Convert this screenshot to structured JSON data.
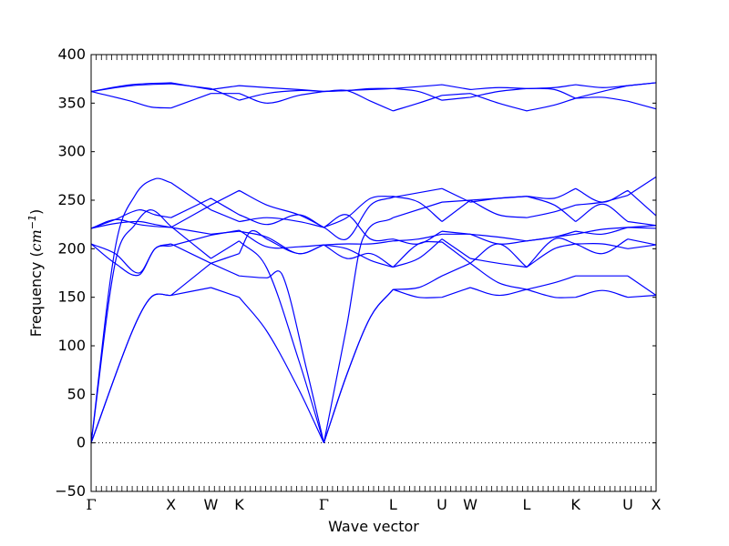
{
  "chart_data": {
    "type": "line",
    "title": "",
    "xlabel": "Wave vector",
    "ylabel": "Frequency (cm⁻¹)",
    "ylabel_prefix": "Frequency (",
    "ylabel_unit": "cm",
    "ylabel_exp": "−1",
    "ylabel_suffix": ")",
    "ylim": [
      -50,
      400
    ],
    "yticks": [
      -50,
      0,
      50,
      100,
      150,
      200,
      250,
      300,
      350,
      400
    ],
    "grid": false,
    "legend": "none",
    "line_color": "#0000ff",
    "zero_line": true,
    "high_symmetry_points": [
      {
        "label": "Γ",
        "pos": 0.0
      },
      {
        "label": "X",
        "pos": 1.0
      },
      {
        "label": "W",
        "pos": 1.5
      },
      {
        "label": "K",
        "pos": 1.854
      },
      {
        "label": "Γ",
        "pos": 2.914
      },
      {
        "label": "L",
        "pos": 3.78
      },
      {
        "label": "U",
        "pos": 4.393
      },
      {
        "label": "W",
        "pos": 4.747
      },
      {
        "label": "L",
        "pos": 5.454
      },
      {
        "label": "K",
        "pos": 6.066
      },
      {
        "label": "U",
        "pos": 6.72
      },
      {
        "label": "X",
        "pos": 7.074
      }
    ],
    "bands": [
      [
        [
          0,
          0
        ],
        [
          0.5,
          112
        ],
        [
          0.75,
          150
        ],
        [
          1.0,
          152
        ],
        [
          1.5,
          160
        ],
        [
          1.854,
          150
        ],
        [
          2.2,
          115
        ],
        [
          2.6,
          55
        ],
        [
          2.914,
          0
        ],
        [
          3.2,
          70
        ],
        [
          3.5,
          130
        ],
        [
          3.78,
          158
        ],
        [
          4.1,
          150
        ],
        [
          4.393,
          150
        ],
        [
          4.747,
          160
        ],
        [
          5.1,
          152
        ],
        [
          5.454,
          158
        ],
        [
          5.8,
          150
        ],
        [
          6.066,
          150
        ],
        [
          6.4,
          157
        ],
        [
          6.72,
          150
        ],
        [
          7.074,
          152
        ]
      ],
      [
        [
          0,
          0
        ],
        [
          0.5,
          112
        ],
        [
          0.75,
          150
        ],
        [
          1.0,
          152
        ],
        [
          1.5,
          185
        ],
        [
          1.854,
          172
        ],
        [
          2.2,
          170
        ],
        [
          2.4,
          172
        ],
        [
          2.7,
          75
        ],
        [
          2.914,
          0
        ],
        [
          3.2,
          70
        ],
        [
          3.5,
          130
        ],
        [
          3.78,
          158
        ],
        [
          4.1,
          160
        ],
        [
          4.393,
          172
        ],
        [
          4.747,
          185
        ],
        [
          5.1,
          165
        ],
        [
          5.454,
          158
        ],
        [
          5.8,
          165
        ],
        [
          6.066,
          172
        ],
        [
          6.72,
          172
        ],
        [
          7.074,
          152
        ]
      ],
      [
        [
          0,
          0
        ],
        [
          0.3,
          185
        ],
        [
          0.55,
          225
        ],
        [
          0.75,
          240
        ],
        [
          1.0,
          223
        ],
        [
          1.5,
          190
        ],
        [
          1.854,
          208
        ],
        [
          2.2,
          180
        ],
        [
          2.6,
          85
        ],
        [
          2.914,
          0
        ],
        [
          3.2,
          120
        ],
        [
          3.4,
          210
        ],
        [
          3.78,
          232
        ],
        [
          4.393,
          248
        ],
        [
          4.747,
          250
        ],
        [
          5.1,
          235
        ],
        [
          5.454,
          232
        ],
        [
          5.8,
          238
        ],
        [
          6.066,
          245
        ],
        [
          6.4,
          248
        ],
        [
          6.72,
          255
        ],
        [
          7.074,
          274
        ]
      ],
      [
        [
          0,
          0
        ],
        [
          0.3,
          200
        ],
        [
          0.55,
          255
        ],
        [
          0.8,
          272
        ],
        [
          1.0,
          268
        ],
        [
          1.5,
          240
        ],
        [
          1.854,
          228
        ],
        [
          2.2,
          232
        ],
        [
          2.6,
          228
        ],
        [
          2.914,
          222
        ],
        [
          3.2,
          210
        ],
        [
          3.5,
          245
        ],
        [
          3.78,
          253
        ],
        [
          4.393,
          262
        ],
        [
          4.747,
          248
        ],
        [
          5.1,
          252
        ],
        [
          5.454,
          254
        ],
        [
          5.8,
          245
        ],
        [
          6.066,
          228
        ],
        [
          6.4,
          246
        ],
        [
          6.72,
          228
        ],
        [
          7.074,
          224
        ]
      ],
      [
        [
          0,
          205
        ],
        [
          0.3,
          185
        ],
        [
          0.6,
          173
        ],
        [
          0.8,
          200
        ],
        [
          1.0,
          203
        ],
        [
          1.5,
          214
        ],
        [
          1.854,
          219
        ],
        [
          2.2,
          202
        ],
        [
          2.6,
          202
        ],
        [
          2.914,
          204
        ],
        [
          3.2,
          200
        ],
        [
          3.5,
          188
        ],
        [
          3.78,
          181
        ],
        [
          4.1,
          205
        ],
        [
          4.393,
          207
        ],
        [
          4.747,
          185
        ],
        [
          5.1,
          205
        ],
        [
          5.454,
          181
        ],
        [
          5.8,
          210
        ],
        [
          6.066,
          205
        ],
        [
          6.4,
          205
        ],
        [
          6.72,
          200
        ],
        [
          7.074,
          204
        ]
      ],
      [
        [
          0,
          205
        ],
        [
          0.3,
          195
        ],
        [
          0.6,
          175
        ],
        [
          0.8,
          200
        ],
        [
          1.0,
          205
        ],
        [
          1.5,
          185
        ],
        [
          1.854,
          195
        ],
        [
          2.0,
          218
        ],
        [
          2.2,
          210
        ],
        [
          2.6,
          195
        ],
        [
          2.914,
          204
        ],
        [
          3.2,
          190
        ],
        [
          3.5,
          195
        ],
        [
          3.78,
          181
        ],
        [
          4.1,
          190
        ],
        [
          4.393,
          210
        ],
        [
          4.747,
          190
        ],
        [
          5.1,
          185
        ],
        [
          5.454,
          181
        ],
        [
          5.8,
          200
        ],
        [
          6.066,
          205
        ],
        [
          6.4,
          195
        ],
        [
          6.72,
          210
        ],
        [
          7.074,
          204
        ]
      ],
      [
        [
          0,
          221
        ],
        [
          0.3,
          230
        ],
        [
          0.6,
          225
        ],
        [
          0.8,
          223
        ],
        [
          1.0,
          222
        ],
        [
          1.5,
          215
        ],
        [
          1.854,
          218
        ],
        [
          2.2,
          212
        ],
        [
          2.6,
          195
        ],
        [
          2.914,
          204
        ],
        [
          3.2,
          205
        ],
        [
          3.5,
          205
        ],
        [
          3.78,
          208
        ],
        [
          4.1,
          210
        ],
        [
          4.393,
          215
        ],
        [
          4.747,
          215
        ],
        [
          5.1,
          212
        ],
        [
          5.454,
          208
        ],
        [
          5.8,
          212
        ],
        [
          6.066,
          215
        ],
        [
          6.4,
          220
        ],
        [
          6.72,
          222
        ],
        [
          7.074,
          224
        ]
      ],
      [
        [
          0,
          221
        ],
        [
          0.3,
          230
        ],
        [
          0.6,
          240
        ],
        [
          0.8,
          235
        ],
        [
          1.0,
          232
        ],
        [
          1.5,
          252
        ],
        [
          1.854,
          235
        ],
        [
          2.2,
          225
        ],
        [
          2.6,
          235
        ],
        [
          2.914,
          222
        ],
        [
          3.2,
          235
        ],
        [
          3.5,
          210
        ],
        [
          3.78,
          210
        ],
        [
          4.1,
          205
        ],
        [
          4.393,
          218
        ],
        [
          4.747,
          215
        ],
        [
          5.1,
          205
        ],
        [
          5.454,
          208
        ],
        [
          5.8,
          212
        ],
        [
          6.066,
          218
        ],
        [
          6.4,
          215
        ],
        [
          6.72,
          222
        ],
        [
          7.074,
          221
        ]
      ],
      [
        [
          0,
          221
        ],
        [
          0.3,
          226
        ],
        [
          0.6,
          228
        ],
        [
          0.8,
          225
        ],
        [
          1.0,
          222
        ],
        [
          1.5,
          245
        ],
        [
          1.854,
          260
        ],
        [
          2.2,
          245
        ],
        [
          2.6,
          235
        ],
        [
          2.914,
          222
        ],
        [
          3.2,
          232
        ],
        [
          3.5,
          252
        ],
        [
          3.78,
          254
        ],
        [
          4.1,
          248
        ],
        [
          4.393,
          228
        ],
        [
          4.747,
          250
        ],
        [
          5.1,
          252
        ],
        [
          5.454,
          254
        ],
        [
          5.8,
          252
        ],
        [
          6.066,
          262
        ],
        [
          6.4,
          248
        ],
        [
          6.72,
          260
        ],
        [
          7.074,
          234
        ]
      ],
      [
        [
          0,
          362
        ],
        [
          0.5,
          352
        ],
        [
          0.75,
          346
        ],
        [
          1.0,
          345
        ],
        [
          1.5,
          360
        ],
        [
          1.854,
          360
        ],
        [
          2.2,
          350
        ],
        [
          2.6,
          358
        ],
        [
          2.914,
          362
        ],
        [
          3.2,
          363
        ],
        [
          3.5,
          352
        ],
        [
          3.78,
          342
        ],
        [
          4.1,
          350
        ],
        [
          4.393,
          358
        ],
        [
          4.747,
          360
        ],
        [
          5.1,
          350
        ],
        [
          5.454,
          342
        ],
        [
          5.8,
          348
        ],
        [
          6.066,
          355
        ],
        [
          6.4,
          356
        ],
        [
          6.72,
          352
        ],
        [
          7.074,
          344
        ]
      ],
      [
        [
          0,
          362
        ],
        [
          0.5,
          368
        ],
        [
          1.0,
          370
        ],
        [
          1.5,
          365
        ],
        [
          1.854,
          353
        ],
        [
          2.2,
          360
        ],
        [
          2.6,
          363
        ],
        [
          2.914,
          362
        ],
        [
          3.2,
          363
        ],
        [
          3.5,
          365
        ],
        [
          3.78,
          365
        ],
        [
          4.1,
          362
        ],
        [
          4.393,
          353
        ],
        [
          4.747,
          356
        ],
        [
          5.1,
          362
        ],
        [
          5.454,
          365
        ],
        [
          5.8,
          364
        ],
        [
          6.066,
          355
        ],
        [
          6.4,
          362
        ],
        [
          6.72,
          368
        ],
        [
          7.074,
          371
        ]
      ],
      [
        [
          0,
          362
        ],
        [
          0.5,
          369
        ],
        [
          1.0,
          371
        ],
        [
          1.5,
          364
        ],
        [
          1.854,
          368
        ],
        [
          2.2,
          366
        ],
        [
          2.6,
          364
        ],
        [
          2.914,
          362
        ],
        [
          3.2,
          363
        ],
        [
          3.5,
          364
        ],
        [
          3.78,
          365
        ],
        [
          4.1,
          367
        ],
        [
          4.393,
          369
        ],
        [
          4.747,
          364
        ],
        [
          5.1,
          366
        ],
        [
          5.454,
          365
        ],
        [
          5.8,
          366
        ],
        [
          6.066,
          369
        ],
        [
          6.4,
          366
        ],
        [
          6.72,
          368
        ],
        [
          7.074,
          371
        ]
      ]
    ]
  }
}
